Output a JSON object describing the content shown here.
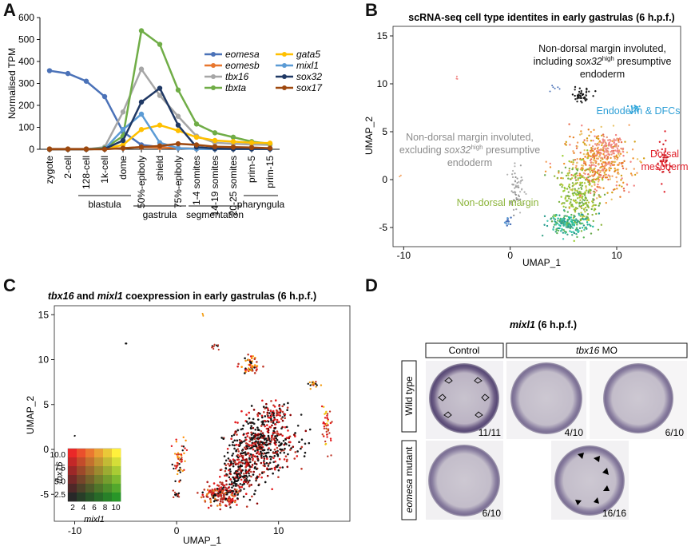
{
  "panels": {
    "A": "A",
    "B": "B",
    "C": "C",
    "D": "D"
  },
  "chart_data": [
    {
      "type": "line",
      "title": "",
      "xlabel": "",
      "ylabel": "Normalised TPM",
      "ylim": [
        0,
        600
      ],
      "yticks": [
        "0",
        "100",
        "200",
        "300",
        "400",
        "500",
        "600"
      ],
      "categories": [
        "zygote",
        "2-cell",
        "128-cell",
        "1k-cell",
        "dome",
        "50%-epiboly",
        "shield",
        "75%-epiboly",
        "1-4 somites",
        "14-19 somites",
        "20-25 somites",
        "prim-5",
        "prim-15"
      ],
      "stage_groups": [
        {
          "label": "blastula",
          "from": 2,
          "to": 4
        },
        {
          "label": "gastrula",
          "from": 5,
          "to": 7
        },
        {
          "label": "segmentation",
          "from": 8,
          "to": 10
        },
        {
          "label": "pharyngula",
          "from": 11,
          "to": 12
        }
      ],
      "series": [
        {
          "name": "eomesa",
          "color": "#4b72b8",
          "values": [
            358,
            345,
            310,
            240,
            80,
            20,
            10,
            5,
            2,
            1,
            1,
            1,
            1
          ]
        },
        {
          "name": "eomesb",
          "color": "#e8772e",
          "values": [
            2,
            2,
            2,
            2,
            5,
            10,
            8,
            5,
            3,
            2,
            2,
            2,
            2
          ]
        },
        {
          "name": "tbx16",
          "color": "#a6a6a6",
          "values": [
            0,
            0,
            0,
            10,
            170,
            365,
            245,
            150,
            60,
            30,
            25,
            22,
            20
          ]
        },
        {
          "name": "tbxta",
          "color": "#70ad47",
          "values": [
            0,
            0,
            0,
            5,
            60,
            540,
            478,
            270,
            115,
            75,
            55,
            35,
            25
          ]
        },
        {
          "name": "gata5",
          "color": "#ffc000",
          "values": [
            0,
            0,
            0,
            2,
            20,
            90,
            110,
            85,
            55,
            40,
            35,
            30,
            28
          ]
        },
        {
          "name": "mixl1",
          "color": "#5b9bd5",
          "values": [
            0,
            0,
            0,
            2,
            90,
            160,
            30,
            5,
            2,
            1,
            1,
            1,
            1
          ]
        },
        {
          "name": "sox32",
          "color": "#1f3864",
          "values": [
            0,
            0,
            0,
            2,
            40,
            215,
            278,
            110,
            10,
            3,
            2,
            2,
            2
          ]
        },
        {
          "name": "sox17",
          "color": "#9e480e",
          "values": [
            0,
            0,
            0,
            0,
            5,
            10,
            15,
            25,
            20,
            12,
            10,
            8,
            5
          ]
        }
      ]
    },
    {
      "type": "scatter",
      "title": "scRNA-seq cell type identites in early gastrulas (6 h.p.f.)",
      "xlabel": "UMAP_1",
      "ylabel": "UMAP_2",
      "xticks": [
        "-10",
        "0",
        "10"
      ],
      "yticks": [
        "-5",
        "0",
        "5",
        "10",
        "15"
      ],
      "xlim": [
        -11,
        16
      ],
      "ylim": [
        -7,
        16
      ],
      "annotations": [
        {
          "line1": "Non-dorsal margin involuted,",
          "line2_pre": "including ",
          "line2_it": "sox32",
          "line2_sup": "high",
          "line2_post": " presumptive",
          "line3": "endoderm",
          "color": "#111111"
        },
        {
          "text": "Endoderm & DFCs",
          "color": "#2e9fd6"
        },
        {
          "line1": "Dorsal",
          "line2": "mesoderm",
          "color": "#e0202a"
        },
        {
          "line1": "Non-dorsal margin involuted,",
          "line2_pre": "excluding ",
          "line2_it": "sox32",
          "line2_sup": "high",
          "line2_post": " presumptive",
          "line3": "endoderm",
          "color": "#8c8c8c"
        },
        {
          "text": "Non-dorsal margin",
          "color": "#8db53c"
        }
      ]
    },
    {
      "type": "scatter",
      "title_it1": "tbx16",
      "title_mid": " and ",
      "title_it2": "mixl1",
      "title_rest": " coexpression in early gastrulas (6 h.p.f.)",
      "xlabel": "UMAP_1",
      "ylabel": "UMAP_2",
      "xticks": [
        "-10",
        "0",
        "10"
      ],
      "yticks": [
        "-5",
        "0",
        "5",
        "10",
        "15"
      ],
      "xlim": [
        -12,
        17
      ],
      "ylim": [
        -8,
        16
      ],
      "legend": {
        "xlabel": "mixl1",
        "ylabel": "tbx16",
        "xticks": [
          "2",
          "4",
          "6",
          "8",
          "10"
        ],
        "yticks": [
          "2.5",
          "5.0",
          "7.5",
          "10.0"
        ]
      }
    }
  ],
  "panel_d": {
    "title_it": "mixl1",
    "title_rest": " (6 h.p.f.)",
    "col_control": "Control",
    "col_mo_it": "tbx16",
    "col_mo_rest": " MO",
    "row_wt": "Wild type",
    "row_mut_it": "eomesa",
    "row_mut_rest": " mutant",
    "counts": [
      "11/11",
      "4/10",
      "6/10",
      "6/10",
      "16/16"
    ]
  }
}
